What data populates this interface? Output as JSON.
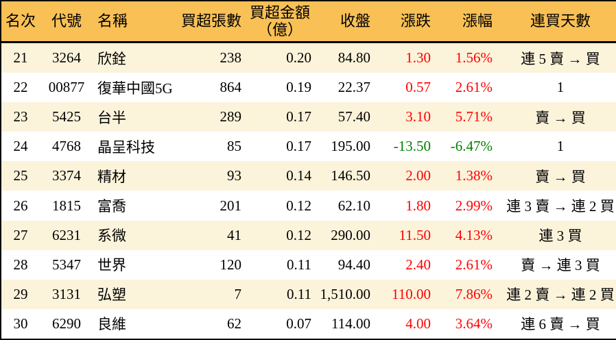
{
  "colors": {
    "header_bg": "#F8C055",
    "row_stripe_bg": "#FCF3DB",
    "row_white_bg": "#FFFFFF",
    "up_text": "#FF0000",
    "down_text": "#008000",
    "border": "#000000"
  },
  "table": {
    "header": {
      "rank": "名次",
      "code": "代號",
      "name": "名稱",
      "volume": "買超張數",
      "amount_line1": "買超金額",
      "amount_line2": "（億）",
      "close": "收盤",
      "change": "漲跌",
      "change_pct": "漲幅",
      "streak": "連買天數"
    },
    "rows": [
      {
        "rank": "21",
        "code": "3264",
        "name": "欣銓",
        "volume": "238",
        "amount": "0.20",
        "close": "84.80",
        "change": "1.30",
        "change_pct": "1.56%",
        "streak": "連 5 賣 → 買"
      },
      {
        "rank": "22",
        "code": "00877",
        "name": "復華中國5G",
        "volume": "864",
        "amount": "0.19",
        "close": "22.37",
        "change": "0.57",
        "change_pct": "2.61%",
        "streak": "1"
      },
      {
        "rank": "23",
        "code": "5425",
        "name": "台半",
        "volume": "289",
        "amount": "0.17",
        "close": "57.40",
        "change": "3.10",
        "change_pct": "5.71%",
        "streak": "賣 → 買"
      },
      {
        "rank": "24",
        "code": "4768",
        "name": "晶呈科技",
        "volume": "85",
        "amount": "0.17",
        "close": "195.00",
        "change": "-13.50",
        "change_pct": "-6.47%",
        "streak": "1"
      },
      {
        "rank": "25",
        "code": "3374",
        "name": "精材",
        "volume": "93",
        "amount": "0.14",
        "close": "146.50",
        "change": "2.00",
        "change_pct": "1.38%",
        "streak": "賣 → 買"
      },
      {
        "rank": "26",
        "code": "1815",
        "name": "富喬",
        "volume": "201",
        "amount": "0.12",
        "close": "62.10",
        "change": "1.80",
        "change_pct": "2.99%",
        "streak": "連 3 賣 → 連 2 買"
      },
      {
        "rank": "27",
        "code": "6231",
        "name": "系微",
        "volume": "41",
        "amount": "0.12",
        "close": "290.00",
        "change": "11.50",
        "change_pct": "4.13%",
        "streak": "連 3 買"
      },
      {
        "rank": "28",
        "code": "5347",
        "name": "世界",
        "volume": "120",
        "amount": "0.11",
        "close": "94.40",
        "change": "2.40",
        "change_pct": "2.61%",
        "streak": "賣 → 連 3 買"
      },
      {
        "rank": "29",
        "code": "3131",
        "name": "弘塑",
        "volume": "7",
        "amount": "0.11",
        "close": "1,510.00",
        "change": "110.00",
        "change_pct": "7.86%",
        "streak": "連 2 賣 → 連 2 買"
      },
      {
        "rank": "30",
        "code": "6290",
        "name": "良維",
        "volume": "62",
        "amount": "0.07",
        "close": "114.00",
        "change": "4.00",
        "change_pct": "3.64%",
        "streak": "連 6 賣 → 買"
      }
    ]
  }
}
